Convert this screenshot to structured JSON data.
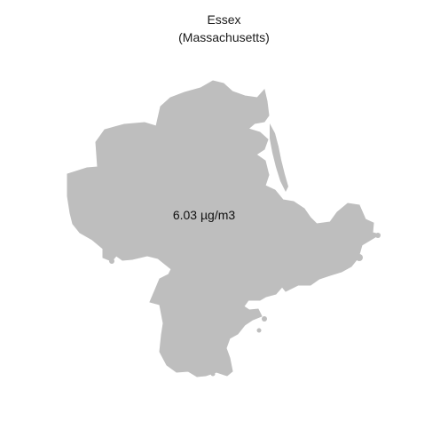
{
  "map": {
    "title": "Essex",
    "subtitle": "(Massachusetts)",
    "region_fill": "#bebebe",
    "background": "#ffffff",
    "value_label": "6.03 µg/m3"
  }
}
